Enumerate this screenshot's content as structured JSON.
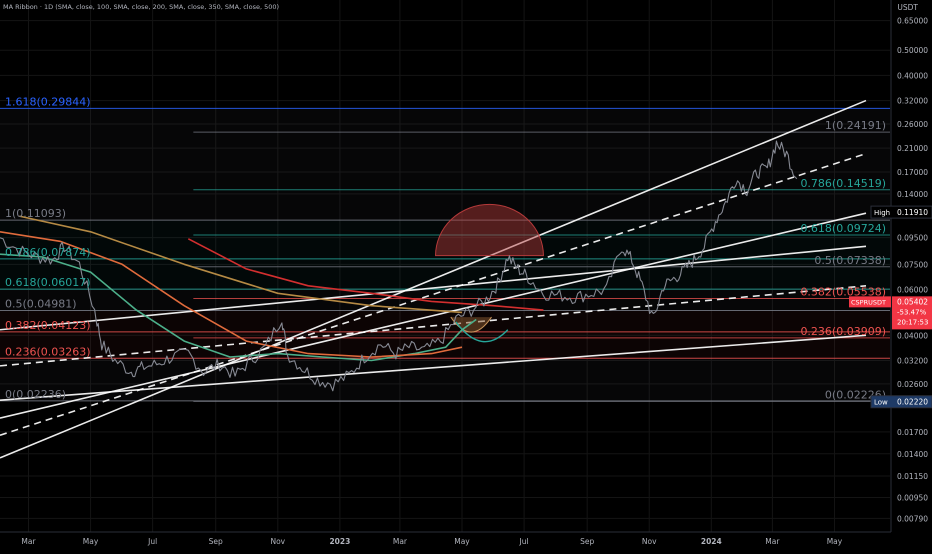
{
  "header": {
    "indicator": "MA Ribbon · 1D (SMA, close, 100, SMA, close, 200, SMA, close, 350, SMA, close, 500)",
    "currency": "USDT"
  },
  "colors": {
    "background": "#000000",
    "price": "#868993",
    "channel": "#ffffff",
    "ma100": "#4caf8a",
    "ma200": "#e06b3c",
    "ma350": "#d32f2f",
    "ma500": "#b58a44",
    "fib_blue": "#2962ff",
    "fib_teal": "#26a69a",
    "fib_red": "#ef5350",
    "fib_grey": "#787b86",
    "arc": "#b53a3a",
    "high_bg": "#000000",
    "low_bg": "#1e3a66",
    "symbol_bg": "#f23645"
  },
  "chart_data": {
    "type": "line",
    "symbol": "CSPRUSDT",
    "scale": "log",
    "y_ticks": [
      "0.65000",
      "0.50000",
      "0.40000",
      "0.32000",
      "0.26000",
      "0.21000",
      "0.17000",
      "0.14000",
      "0.11910",
      "0.09500",
      "0.07500",
      "0.06000",
      "0.05402",
      "0.04000",
      "0.03200",
      "0.02600",
      "0.02220",
      "0.01700",
      "0.01400",
      "0.01150",
      "0.00950",
      "0.00790"
    ],
    "y_tick_values": [
      0.65,
      0.5,
      0.4,
      0.32,
      0.26,
      0.21,
      0.17,
      0.14,
      0.1191,
      0.095,
      0.075,
      0.06,
      0.05402,
      0.04,
      0.032,
      0.026,
      0.0222,
      0.017,
      0.014,
      0.0115,
      0.0095,
      0.0079
    ],
    "x_ticks": [
      "Mar",
      "May",
      "Jul",
      "Sep",
      "Nov",
      "2023",
      "Mar",
      "May",
      "Jul",
      "Sep",
      "Nov",
      "2024",
      "Mar",
      "May"
    ],
    "x_range": [
      "2022-02-01",
      "2024-06-01"
    ],
    "x_tick_dates": [
      "2022-03-01",
      "2022-05-01",
      "2022-07-01",
      "2022-09-01",
      "2022-11-01",
      "2023-01-01",
      "2023-03-01",
      "2023-05-01",
      "2023-07-01",
      "2023-09-01",
      "2023-11-01",
      "2024-01-01",
      "2024-03-01",
      "2024-05-01"
    ],
    "price_series": {
      "dates": [
        "2022-02-01",
        "2022-02-20",
        "2022-03-10",
        "2022-03-25",
        "2022-04-05",
        "2022-04-20",
        "2022-05-05",
        "2022-05-12",
        "2022-05-25",
        "2022-06-10",
        "2022-06-20",
        "2022-07-05",
        "2022-07-20",
        "2022-08-05",
        "2022-08-20",
        "2022-09-05",
        "2022-09-20",
        "2022-10-05",
        "2022-10-20",
        "2022-11-05",
        "2022-11-10",
        "2022-11-25",
        "2022-12-10",
        "2022-12-25",
        "2023-01-10",
        "2023-01-25",
        "2023-02-10",
        "2023-02-25",
        "2023-03-10",
        "2023-03-25",
        "2023-04-10",
        "2023-04-25",
        "2023-05-10",
        "2023-05-25",
        "2023-06-05",
        "2023-06-15",
        "2023-06-25",
        "2023-07-05",
        "2023-07-20",
        "2023-08-05",
        "2023-08-20",
        "2023-09-05",
        "2023-09-20",
        "2023-10-05",
        "2023-10-15",
        "2023-10-25",
        "2023-11-05",
        "2023-11-15",
        "2023-11-25",
        "2023-12-05",
        "2023-12-15",
        "2023-12-25",
        "2024-01-05",
        "2024-01-15",
        "2024-01-25",
        "2024-02-05",
        "2024-02-15",
        "2024-02-25",
        "2024-03-05",
        "2024-03-15",
        "2024-03-25"
      ],
      "values": [
        0.095,
        0.085,
        0.08,
        0.078,
        0.088,
        0.075,
        0.05,
        0.037,
        0.032,
        0.029,
        0.03,
        0.031,
        0.033,
        0.034,
        0.029,
        0.031,
        0.028,
        0.032,
        0.036,
        0.047,
        0.034,
        0.03,
        0.027,
        0.026,
        0.028,
        0.033,
        0.037,
        0.034,
        0.036,
        0.035,
        0.038,
        0.046,
        0.05,
        0.055,
        0.063,
        0.08,
        0.072,
        0.067,
        0.058,
        0.057,
        0.056,
        0.058,
        0.06,
        0.088,
        0.078,
        0.062,
        0.046,
        0.062,
        0.066,
        0.071,
        0.078,
        0.088,
        0.11,
        0.13,
        0.16,
        0.145,
        0.17,
        0.175,
        0.22,
        0.2,
        0.16
      ]
    },
    "moving_averages": [
      {
        "name": "SMA 100",
        "color_key": "ma100",
        "dates": [
          "2022-02-01",
          "2022-03-15",
          "2022-05-01",
          "2022-06-15",
          "2022-08-01",
          "2022-09-15",
          "2022-11-01",
          "2022-12-15",
          "2023-02-01",
          "2023-03-15",
          "2023-04-15",
          "2023-05-01",
          "2023-05-15"
        ],
        "values": [
          0.082,
          0.08,
          0.07,
          0.05,
          0.038,
          0.033,
          0.034,
          0.033,
          0.032,
          0.034,
          0.036,
          0.042,
          0.046
        ]
      },
      {
        "name": "SMA 200",
        "color_key": "ma200",
        "dates": [
          "2022-02-01",
          "2022-04-01",
          "2022-06-01",
          "2022-08-01",
          "2022-10-01",
          "2022-12-01",
          "2023-02-01",
          "2023-04-01",
          "2023-05-01"
        ],
        "values": [
          0.1,
          0.092,
          0.075,
          0.052,
          0.038,
          0.034,
          0.033,
          0.034,
          0.036
        ]
      },
      {
        "name": "SMA 350",
        "color_key": "ma350",
        "dates": [
          "2022-08-05",
          "2022-10-01",
          "2022-12-01",
          "2023-02-01",
          "2023-04-01",
          "2023-06-01",
          "2023-07-20"
        ],
        "values": [
          0.094,
          0.072,
          0.062,
          0.058,
          0.054,
          0.052,
          0.05
        ]
      },
      {
        "name": "SMA 500",
        "color_key": "ma500",
        "dates": [
          "2022-02-20",
          "2022-05-01",
          "2022-08-01",
          "2022-11-01",
          "2023-02-01",
          "2023-05-01"
        ],
        "values": [
          0.115,
          0.1,
          0.075,
          0.058,
          0.052,
          0.049
        ]
      }
    ],
    "channel_lines": [
      {
        "style": "solid",
        "points": [
          [
            "2022-02-01",
            0.0135
          ],
          [
            "2024-06-01",
            0.32
          ]
        ]
      },
      {
        "style": "dashed",
        "points": [
          [
            "2022-02-01",
            0.0165
          ],
          [
            "2024-06-01",
            0.2
          ]
        ]
      },
      {
        "style": "solid",
        "points": [
          [
            "2022-02-01",
            0.0192
          ],
          [
            "2024-06-01",
            0.118
          ]
        ]
      },
      {
        "style": "solid",
        "points": [
          [
            "2022-02-01",
            0.0225
          ],
          [
            "2024-06-01",
            0.04
          ]
        ]
      },
      {
        "style": "dashed",
        "points": [
          [
            "2022-02-01",
            0.0305
          ],
          [
            "2024-06-01",
            0.062
          ]
        ]
      },
      {
        "style": "solid",
        "points": [
          [
            "2022-02-01",
            0.042
          ],
          [
            "2024-06-01",
            0.088
          ]
        ]
      }
    ],
    "fib_retracement_1": [
      {
        "label": "1.618(0.29844)",
        "value": 0.29844,
        "color_key": "fib_blue"
      },
      {
        "label": "1(0.11093)",
        "value": 0.11093,
        "color_key": "fib_grey"
      },
      {
        "label": "0.786(0.07874)",
        "value": 0.07874,
        "color_key": "fib_teal"
      },
      {
        "label": "0.618(0.06017)",
        "value": 0.06017,
        "color_key": "fib_teal"
      },
      {
        "label": "0.5(0.04981)",
        "value": 0.04981,
        "color_key": "fib_grey"
      },
      {
        "label": "0.382(0.04123)",
        "value": 0.04123,
        "color_key": "fib_red"
      },
      {
        "label": "0.236(0.03263)",
        "value": 0.03263,
        "color_key": "fib_red"
      },
      {
        "label": "0(0.02236)",
        "value": 0.02236,
        "color_key": "fib_grey"
      }
    ],
    "fib_retracement_2": [
      {
        "label": "1(0.24191)",
        "value": 0.24191,
        "color_key": "fib_grey"
      },
      {
        "label": "0.786(0.14519)",
        "value": 0.14519,
        "color_key": "fib_teal"
      },
      {
        "label": "0.618(0.09724)",
        "value": 0.09724,
        "color_key": "fib_teal"
      },
      {
        "label": "0.5(0.07338)",
        "value": 0.07338,
        "color_key": "fib_grey"
      },
      {
        "label": "0.382(0.05538)",
        "value": 0.05538,
        "color_key": "fib_red"
      },
      {
        "label": "0.236(0.03909)",
        "value": 0.03909,
        "color_key": "fib_red"
      },
      {
        "label": "0(0.02226)",
        "value": 0.02226,
        "color_key": "fib_grey"
      }
    ],
    "price_tags": [
      {
        "label": "High",
        "value_text": "0.11910",
        "value": 0.1191,
        "bg_key": "high_bg"
      },
      {
        "label": "Low",
        "value_text": "0.02220",
        "value": 0.0222,
        "bg_key": "low_bg"
      }
    ],
    "current_price": {
      "symbol": "CSPRUSDT",
      "price": "0.05402",
      "change": "-53.47%",
      "countdown": "20:17:53",
      "value": 0.05402
    }
  }
}
